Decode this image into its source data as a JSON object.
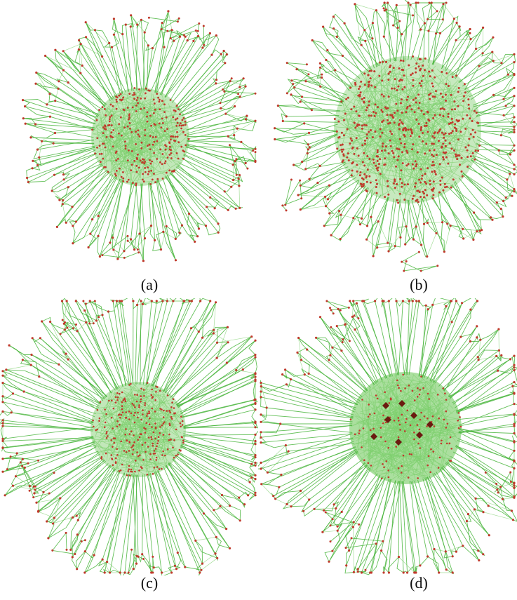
{
  "figure": {
    "panels": [
      {
        "id": "a",
        "label": "(a)"
      },
      {
        "id": "b",
        "label": "(b)"
      },
      {
        "id": "c",
        "label": "(c)"
      },
      {
        "id": "d",
        "label": "(d)"
      }
    ],
    "colors": {
      "edge": "#49b53c",
      "edge_light": "#7fd06f",
      "node": "#c0392b",
      "node_dark": "#6b1a10",
      "core_fill": "#8fd47f"
    }
  }
}
